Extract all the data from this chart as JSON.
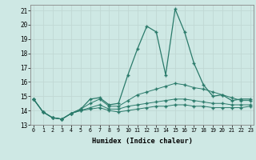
{
  "xlabel": "Humidex (Indice chaleur)",
  "bg_color": "#cee8e4",
  "grid_color": "#c0d8d4",
  "line_color": "#2a7a6a",
  "xlim": [
    0,
    23
  ],
  "ylim": [
    13.0,
    21.4
  ],
  "xticks": [
    0,
    1,
    2,
    3,
    4,
    5,
    6,
    7,
    8,
    9,
    10,
    11,
    12,
    13,
    14,
    15,
    16,
    17,
    18,
    19,
    20,
    21,
    22,
    23
  ],
  "yticks": [
    13,
    14,
    15,
    16,
    17,
    18,
    19,
    20,
    21
  ],
  "line1_y": [
    14.8,
    13.9,
    13.5,
    13.4,
    13.8,
    14.1,
    14.8,
    14.9,
    14.4,
    14.5,
    16.5,
    18.3,
    19.9,
    19.5,
    16.5,
    21.1,
    19.5,
    17.3,
    15.8,
    15.0,
    15.1,
    14.7,
    14.8,
    14.8
  ],
  "line2_y": [
    14.8,
    13.9,
    13.5,
    13.4,
    13.8,
    14.1,
    14.5,
    14.8,
    14.3,
    14.3,
    14.7,
    15.1,
    15.3,
    15.5,
    15.7,
    15.9,
    15.8,
    15.6,
    15.5,
    15.3,
    15.1,
    14.9,
    14.7,
    14.7
  ],
  "line3_y": [
    14.8,
    13.9,
    13.5,
    13.4,
    13.8,
    14.0,
    14.2,
    14.4,
    14.1,
    14.1,
    14.3,
    14.4,
    14.5,
    14.6,
    14.7,
    14.8,
    14.8,
    14.7,
    14.6,
    14.5,
    14.5,
    14.4,
    14.4,
    14.4
  ],
  "line4_y": [
    14.8,
    13.9,
    13.5,
    13.4,
    13.8,
    14.0,
    14.1,
    14.2,
    14.0,
    13.9,
    14.0,
    14.1,
    14.2,
    14.3,
    14.3,
    14.4,
    14.4,
    14.3,
    14.3,
    14.2,
    14.2,
    14.2,
    14.2,
    14.3
  ]
}
